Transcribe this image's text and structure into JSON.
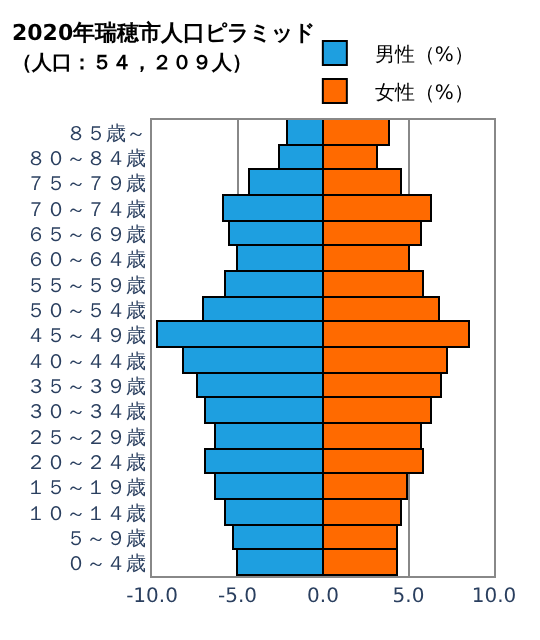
{
  "chart_data": {
    "type": "bar",
    "orientation": "horizontal",
    "stacked": true,
    "title": "2020年瑞穂市人口ピラミッド",
    "subtitle": "（人口：５４，２０９人）",
    "categories": [
      "８５歳～",
      "８０～８４歳",
      "７５～７９歳",
      "７０～７４歳",
      "６５～６９歳",
      "６０～６４歳",
      "５５～５９歳",
      "５０～５４歳",
      "４５～４９歳",
      "４０～４４歳",
      "３５～３９歳",
      "３０～３４歳",
      "２５～２９歳",
      "２０～２４歳",
      "１５～１９歳",
      "１０～１４歳",
      "５～９歳",
      "０～４歳"
    ],
    "series": [
      {
        "name": "男性（%）",
        "color": "#1e9fe0",
        "values": [
          -2.1,
          -2.5,
          -4.3,
          -5.8,
          -5.4,
          -5.0,
          -5.7,
          -7.0,
          -9.6,
          -8.1,
          -7.3,
          -6.9,
          -6.3,
          -6.9,
          -6.3,
          -5.7,
          -5.2,
          -5.0
        ]
      },
      {
        "name": "女性（%）",
        "color": "#ff6a00",
        "values": [
          3.9,
          3.2,
          4.6,
          6.4,
          5.8,
          5.1,
          5.9,
          6.8,
          8.6,
          7.3,
          6.9,
          6.4,
          5.8,
          5.9,
          5.0,
          4.6,
          4.4,
          4.4
        ]
      }
    ],
    "xlim": [
      -10,
      10
    ],
    "xticks": [
      {
        "value": -10,
        "label": "-10.0"
      },
      {
        "value": -5,
        "label": "-5.0"
      },
      {
        "value": 0,
        "label": "0.0"
      },
      {
        "value": 5,
        "label": "5.0"
      },
      {
        "value": 10,
        "label": "10.0"
      }
    ],
    "grid": "x",
    "legend": "top right"
  }
}
